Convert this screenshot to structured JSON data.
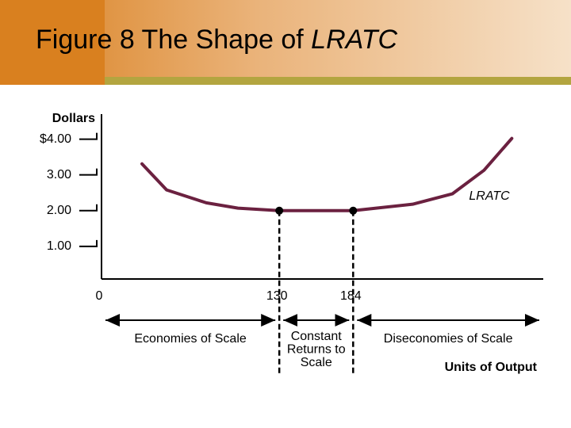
{
  "chart_data": {
    "type": "line",
    "title": [
      "Figure 8 The Shape of",
      "LRATC"
    ],
    "y_label": "Dollars",
    "x_label": "Units of Output",
    "curve_label": "LRATC",
    "x": [
      29.6,
      47.6,
      76.6,
      99.8,
      130,
      184,
      227.5,
      256.5,
      279.7,
      300
    ],
    "series": [
      {
        "name": "LRATC",
        "color": "#6b2140",
        "values": [
          3.31,
          2.58,
          2.22,
          2.07,
          2.0,
          2.0,
          2.18,
          2.47,
          3.13,
          4.02
        ]
      }
    ],
    "xlim": [
      0,
      323
    ],
    "ylim": [
      0,
      4.7
    ],
    "xticks": [
      0,
      130,
      184
    ],
    "yticks": [
      {
        "value": 1,
        "label": "1.00"
      },
      {
        "value": 2,
        "label": "2.00"
      },
      {
        "value": 3,
        "label": "3.00"
      },
      {
        "value": 4,
        "label": "$4.00"
      }
    ],
    "regions": [
      {
        "label": [
          "Economies of Scale"
        ],
        "from": 0,
        "to": 130
      },
      {
        "label": [
          "Constant",
          "Returns to",
          "Scale"
        ],
        "from": 130,
        "to": 184
      },
      {
        "label": [
          "Diseconomies of Scale"
        ],
        "from": 184,
        "to": 323
      }
    ]
  }
}
